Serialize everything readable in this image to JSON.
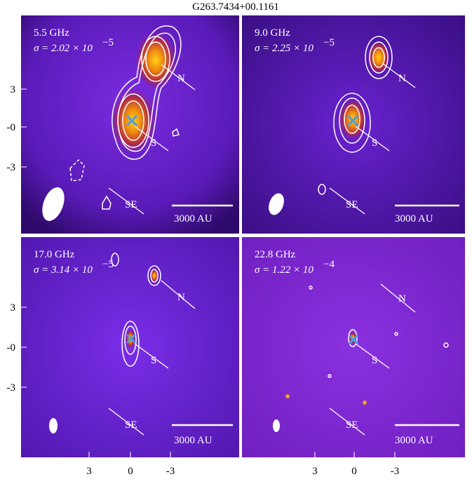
{
  "title": "G263.7434+00.1161",
  "panels": [
    {
      "frequency": "5.5 GHz",
      "sigma": "σ = 2.02 × 10",
      "sigma_exponent": "−5",
      "labels": [
        "N",
        "S",
        "SE"
      ],
      "scale_bar": "3000 AU"
    },
    {
      "frequency": "9.0 GHz",
      "sigma": "σ = 2.25 × 10",
      "sigma_exponent": "−5",
      "labels": [
        "N",
        "S",
        "SE"
      ],
      "scale_bar": "3000 AU"
    },
    {
      "frequency": "17.0 GHz",
      "sigma": "σ = 3.14 × 10",
      "sigma_exponent": "−5",
      "labels": [
        "N",
        "S",
        "SE"
      ],
      "scale_bar": "3000 AU"
    },
    {
      "frequency": "22.8 GHz",
      "sigma": "σ = 1.22 × 10",
      "sigma_exponent": "−4",
      "labels": [
        "N",
        "S",
        "SE"
      ],
      "scale_bar": "3000 AU"
    }
  ],
  "y_tick_labels": [
    "3",
    "-0",
    "-3"
  ],
  "x_tick_labels": [
    "3",
    "0",
    "-3"
  ]
}
